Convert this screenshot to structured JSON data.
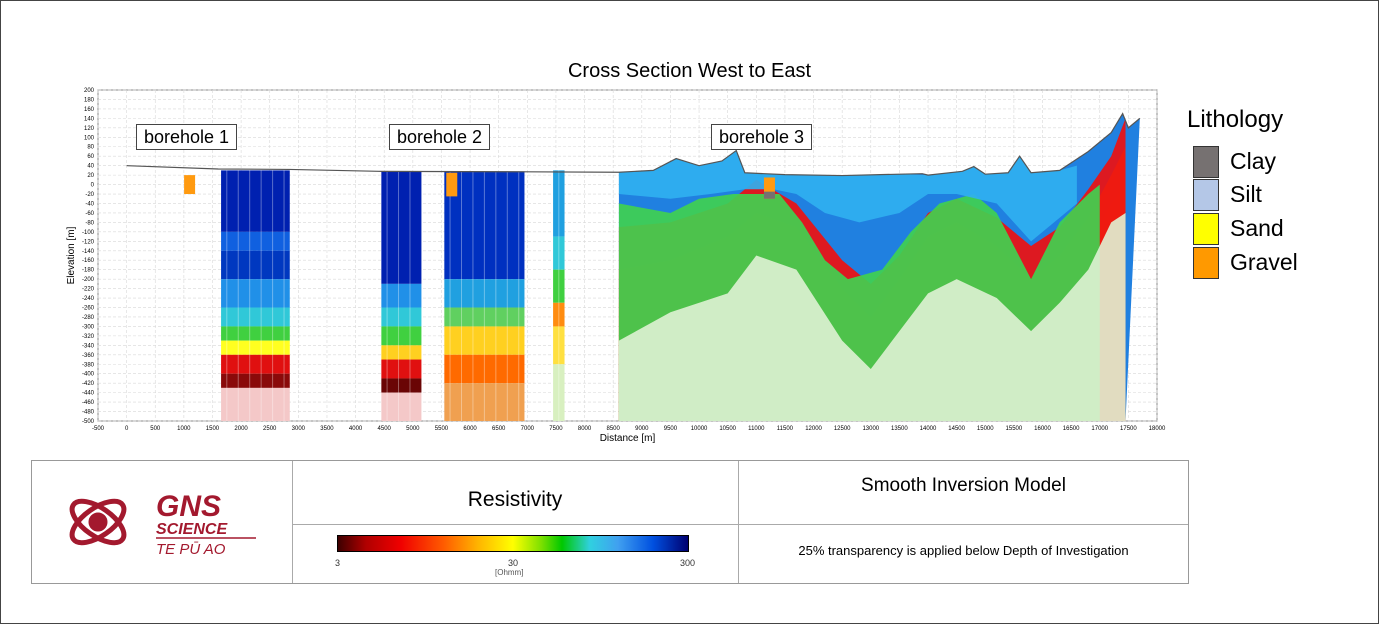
{
  "chart_data": {
    "type": "heatmap",
    "title": "Cross Section West to East",
    "xlabel": "Distance [m]",
    "ylabel": "Elevation [m]",
    "xlim": [
      -500,
      18000
    ],
    "ylim": [
      -500,
      200
    ],
    "x_ticks": [
      -500,
      0,
      500,
      1000,
      1500,
      2000,
      2500,
      3000,
      3500,
      4000,
      4500,
      5000,
      5500,
      6000,
      6500,
      7000,
      7500,
      8000,
      8500,
      9000,
      9500,
      10000,
      10500,
      11000,
      11500,
      12000,
      12500,
      13000,
      13500,
      14000,
      14500,
      15000,
      15500,
      16000,
      16500,
      17000,
      17500,
      18000
    ],
    "y_ticks": [
      200,
      180,
      160,
      140,
      120,
      100,
      80,
      60,
      40,
      20,
      0,
      -20,
      -40,
      -60,
      -80,
      -100,
      -120,
      -140,
      -160,
      -180,
      -200,
      -220,
      -240,
      -260,
      -280,
      -300,
      -320,
      -340,
      -360,
      -380,
      -400,
      -420,
      -440,
      -460,
      -480,
      -500
    ],
    "grid": true,
    "colorbar": {
      "title": "Resistivity",
      "unit": "[Ohmm]",
      "scale": "log",
      "ticks": [
        "3",
        "30",
        "300"
      ],
      "colors": [
        "#3d0000",
        "#b00000",
        "#f00000",
        "#ff5a00",
        "#ffb400",
        "#ffff00",
        "#7ee000",
        "#00c800",
        "#30d0e0",
        "#40a0f0",
        "#0050e0",
        "#000070"
      ]
    },
    "boreholes": [
      {
        "label": "borehole 1",
        "x": 1100
      },
      {
        "label": "borehole 2",
        "x": 5700
      },
      {
        "label": "borehole 3",
        "x": 11200
      }
    ],
    "sections": [
      {
        "x0": 1650,
        "x1": 2850,
        "top": 30,
        "bands": [
          {
            "y0": 30,
            "y1": -100,
            "color": "#0020b0"
          },
          {
            "y0": -100,
            "y1": -140,
            "color": "#1060e0"
          },
          {
            "y0": -140,
            "y1": -200,
            "color": "#0038c0"
          },
          {
            "y0": -200,
            "y1": -260,
            "color": "#2090e8"
          },
          {
            "y0": -260,
            "y1": -300,
            "color": "#30c8d8"
          },
          {
            "y0": -300,
            "y1": -330,
            "color": "#40d040"
          },
          {
            "y0": -330,
            "y1": -360,
            "color": "#ffff20"
          },
          {
            "y0": -360,
            "y1": -400,
            "color": "#e01010"
          },
          {
            "y0": -400,
            "y1": -430,
            "color": "#8a0a0a"
          },
          {
            "y0": -430,
            "y1": -500,
            "color": "#f4c8c8"
          }
        ]
      },
      {
        "x0": 4450,
        "x1": 5150,
        "top": 28,
        "bands": [
          {
            "y0": 28,
            "y1": -210,
            "color": "#0020b0"
          },
          {
            "y0": -210,
            "y1": -260,
            "color": "#2090e8"
          },
          {
            "y0": -260,
            "y1": -300,
            "color": "#30c8d8"
          },
          {
            "y0": -300,
            "y1": -340,
            "color": "#40d040"
          },
          {
            "y0": -340,
            "y1": -370,
            "color": "#ffd020"
          },
          {
            "y0": -370,
            "y1": -410,
            "color": "#e01010"
          },
          {
            "y0": -410,
            "y1": -440,
            "color": "#6a0505"
          },
          {
            "y0": -440,
            "y1": -500,
            "color": "#f4c8c8"
          }
        ]
      },
      {
        "x0": 5550,
        "x1": 6950,
        "top": 28,
        "bands": [
          {
            "y0": 28,
            "y1": -200,
            "color": "#0030c0"
          },
          {
            "y0": -200,
            "y1": -260,
            "color": "#20a0e0"
          },
          {
            "y0": -260,
            "y1": -300,
            "color": "#60d060"
          },
          {
            "y0": -300,
            "y1": -360,
            "color": "#ffd020"
          },
          {
            "y0": -360,
            "y1": -420,
            "color": "#ff6a00"
          },
          {
            "y0": -420,
            "y1": -500,
            "color": "#f0a050"
          }
        ]
      },
      {
        "x0": 7450,
        "x1": 7650,
        "top": 30,
        "bands": [
          {
            "y0": 30,
            "y1": -110,
            "color": "#20a0e0"
          },
          {
            "y0": -110,
            "y1": -180,
            "color": "#30c8d8"
          },
          {
            "y0": -180,
            "y1": -250,
            "color": "#40d040"
          },
          {
            "y0": -250,
            "y1": -300,
            "color": "#ff8c10"
          },
          {
            "y0": -300,
            "y1": -380,
            "color": "#ffe040"
          },
          {
            "y0": -380,
            "y1": -500,
            "color": "#d8f0c0"
          }
        ]
      }
    ],
    "terrain": [
      [
        0,
        40
      ],
      [
        1600,
        33
      ],
      [
        2850,
        32
      ],
      [
        4400,
        28
      ],
      [
        7000,
        27
      ],
      [
        8600,
        26
      ],
      [
        9200,
        30
      ],
      [
        9600,
        55
      ],
      [
        10000,
        40
      ],
      [
        10400,
        50
      ],
      [
        10650,
        72
      ],
      [
        10800,
        25
      ],
      [
        11500,
        21
      ],
      [
        12500,
        19
      ],
      [
        13500,
        22
      ],
      [
        13900,
        23
      ],
      [
        14000,
        20
      ],
      [
        14600,
        28
      ],
      [
        14800,
        38
      ],
      [
        15000,
        22
      ],
      [
        15400,
        25
      ],
      [
        15600,
        60
      ],
      [
        15800,
        25
      ],
      [
        16300,
        30
      ],
      [
        16800,
        70
      ],
      [
        17200,
        110
      ],
      [
        17400,
        150
      ],
      [
        17500,
        120
      ],
      [
        17700,
        140
      ]
    ],
    "layers": [
      {
        "color": "#d8f0c8",
        "top": [
          [
            8600,
            -500
          ],
          [
            8600,
            -330
          ],
          [
            9500,
            -270
          ],
          [
            10500,
            -230
          ],
          [
            11000,
            -150
          ],
          [
            11700,
            -180
          ],
          [
            12500,
            -330
          ],
          [
            13000,
            -390
          ],
          [
            13500,
            -310
          ],
          [
            14000,
            -230
          ],
          [
            14500,
            -200
          ],
          [
            15200,
            -240
          ],
          [
            15800,
            -310
          ],
          [
            16300,
            -250
          ],
          [
            16800,
            -180
          ],
          [
            17200,
            -80
          ],
          [
            17450,
            -60
          ],
          [
            17450,
            -500
          ]
        ]
      },
      {
        "color": "#ffee30",
        "top": [
          [
            8600,
            -250
          ],
          [
            9500,
            -230
          ],
          [
            10500,
            -210
          ],
          [
            11000,
            -120
          ],
          [
            11700,
            -140
          ],
          [
            12500,
            -290
          ],
          [
            13000,
            -350
          ],
          [
            13500,
            -270
          ],
          [
            14000,
            -180
          ],
          [
            14500,
            -150
          ],
          [
            15200,
            -190
          ],
          [
            15800,
            -270
          ],
          [
            16300,
            -210
          ],
          [
            16800,
            -130
          ],
          [
            17200,
            -40
          ],
          [
            17450,
            0
          ]
        ]
      },
      {
        "color": "#ff8a10",
        "top": [
          [
            8600,
            -180
          ],
          [
            9500,
            -160
          ],
          [
            10500,
            -110
          ],
          [
            11000,
            -60
          ],
          [
            11700,
            -90
          ],
          [
            12500,
            -220
          ],
          [
            13000,
            -280
          ],
          [
            13500,
            -200
          ],
          [
            14000,
            -110
          ],
          [
            14500,
            -80
          ],
          [
            15200,
            -130
          ],
          [
            15800,
            -200
          ],
          [
            16300,
            -150
          ],
          [
            16800,
            -70
          ],
          [
            17200,
            20
          ],
          [
            17450,
            80
          ]
        ]
      },
      {
        "color": "#ee1010",
        "top": [
          [
            8600,
            -90
          ],
          [
            9500,
            -80
          ],
          [
            10500,
            -40
          ],
          [
            11000,
            10
          ],
          [
            11700,
            -40
          ],
          [
            12500,
            -160
          ],
          [
            13000,
            -210
          ],
          [
            13500,
            -150
          ],
          [
            14000,
            -60
          ],
          [
            14500,
            -30
          ],
          [
            15200,
            -70
          ],
          [
            15800,
            -130
          ],
          [
            16300,
            -90
          ],
          [
            16800,
            -10
          ],
          [
            17200,
            60
          ],
          [
            17450,
            140
          ]
        ]
      },
      {
        "color": "#40d050",
        "top": [
          [
            8600,
            -40
          ],
          [
            9500,
            -60
          ],
          [
            10000,
            -30
          ],
          [
            10600,
            -20
          ],
          [
            11400,
            -20
          ],
          [
            11800,
            -80
          ],
          [
            12200,
            -160
          ],
          [
            12600,
            -200
          ],
          [
            13200,
            -180
          ],
          [
            13700,
            -100
          ],
          [
            14200,
            -40
          ],
          [
            14800,
            -20
          ],
          [
            15200,
            -60
          ],
          [
            15800,
            -200
          ],
          [
            16300,
            -80
          ],
          [
            16800,
            -20
          ],
          [
            17000,
            0
          ]
        ]
      },
      {
        "color": "#30b0f0",
        "top": [
          [
            8600,
            26
          ],
          [
            9200,
            30
          ],
          [
            9600,
            55
          ],
          [
            10000,
            40
          ],
          [
            10400,
            50
          ],
          [
            10650,
            72
          ],
          [
            10800,
            25
          ],
          [
            11500,
            21
          ],
          [
            12500,
            19
          ],
          [
            13500,
            22
          ],
          [
            14000,
            20
          ],
          [
            14600,
            28
          ],
          [
            14800,
            38
          ],
          [
            15000,
            22
          ],
          [
            15400,
            25
          ],
          [
            15600,
            60
          ],
          [
            15800,
            25
          ],
          [
            16300,
            30
          ],
          [
            16600,
            40
          ],
          [
            16600,
            -40
          ],
          [
            15800,
            -120
          ],
          [
            15200,
            -40
          ],
          [
            14500,
            -20
          ],
          [
            14000,
            -20
          ],
          [
            13500,
            -60
          ],
          [
            12800,
            -80
          ],
          [
            12200,
            -60
          ],
          [
            11700,
            -20
          ],
          [
            11300,
            -10
          ],
          [
            10800,
            -10
          ],
          [
            10200,
            -20
          ],
          [
            9500,
            -30
          ],
          [
            8600,
            -20
          ]
        ]
      }
    ],
    "lithology_boxes": [
      {
        "x": 1100,
        "top": 20,
        "bottom": -20,
        "color": "#ff9a10"
      },
      {
        "x": 5680,
        "top": 25,
        "bottom": -25,
        "color": "#ff9a10"
      },
      {
        "x": 11230,
        "top": 15,
        "bottom": -30,
        "color": "#ff9a10"
      }
    ]
  },
  "legend": {
    "title": "Lithology",
    "items": [
      {
        "label": "Clay",
        "color": "#767171"
      },
      {
        "label": "Silt",
        "color": "#b4c7e7"
      },
      {
        "label": "Sand",
        "color": "#ffff00"
      },
      {
        "label": "Gravel",
        "color": "#ff9900"
      }
    ]
  },
  "footer": {
    "logo": {
      "line1": "GNS",
      "line2": "SCIENCE",
      "line3": "TE PŪ AO",
      "color": "#a3192e"
    },
    "resistivity_title": "Resistivity",
    "model_title": "Smooth Inversion Model",
    "transparency_note": "25% transparency is applied below Depth of Investigation",
    "colorbar_ticks": [
      "3",
      "30",
      "300"
    ],
    "colorbar_unit": "[Ohmm]"
  }
}
